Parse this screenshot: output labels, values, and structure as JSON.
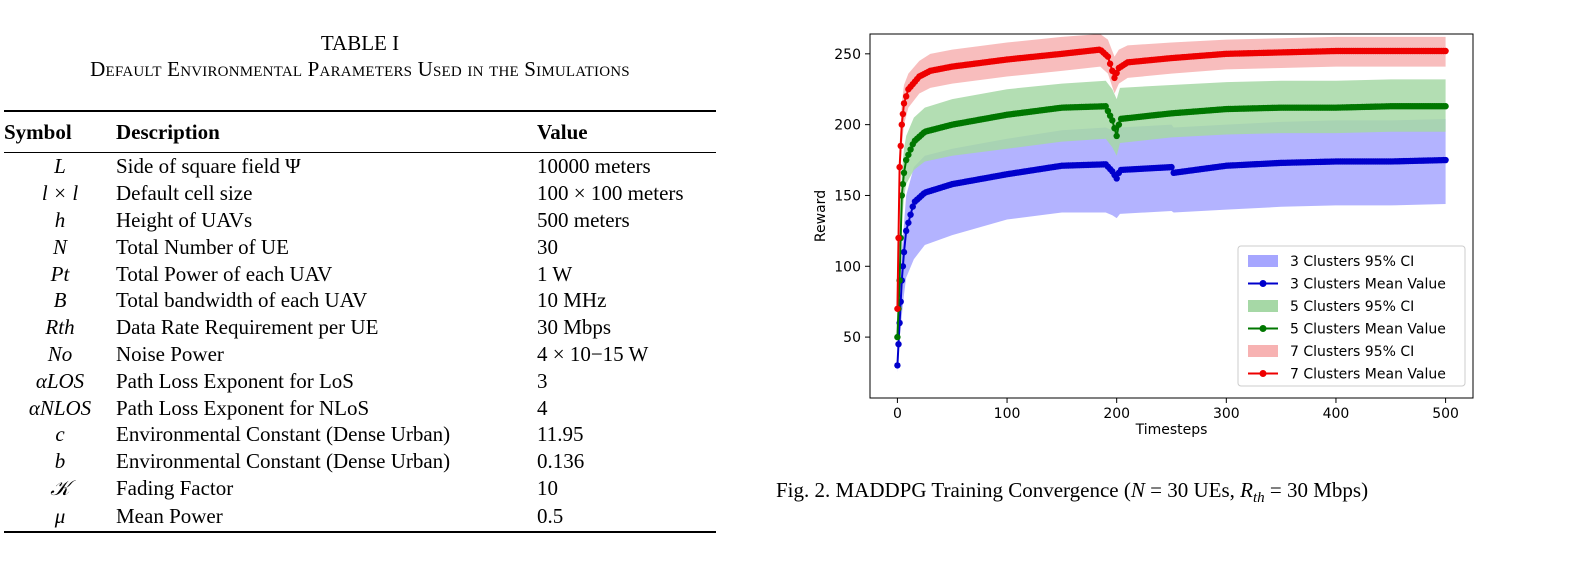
{
  "table": {
    "label": "TABLE I",
    "title": "Default Environmental Parameters Used in the Simulations",
    "headers": [
      "Symbol",
      "Description",
      "Value"
    ],
    "rows": [
      {
        "symbol": "L",
        "description": "Side of square field Ψ",
        "value": "10000 meters"
      },
      {
        "symbol": "l × l",
        "description": "Default cell size",
        "value": "100 × 100 meters"
      },
      {
        "symbol": "h",
        "description": "Height of UAVs",
        "value": "500 meters"
      },
      {
        "symbol": "N",
        "description": "Total Number of UE",
        "value": "30"
      },
      {
        "symbol": "Pt",
        "description": "Total Power of each UAV",
        "value": "1 W"
      },
      {
        "symbol": "B",
        "description": "Total bandwidth of each UAV",
        "value": "10 MHz"
      },
      {
        "symbol": "Rth",
        "description": "Data Rate Requirement per UE",
        "value": "30 Mbps"
      },
      {
        "symbol": "No",
        "description": "Noise Power",
        "value": "4 × 10−15 W"
      },
      {
        "symbol": "αLOS",
        "description": "Path Loss Exponent for LoS",
        "value": "3"
      },
      {
        "symbol": "αNLOS",
        "description": "Path Loss Exponent for NLoS",
        "value": "4"
      },
      {
        "symbol": "c",
        "description": "Environmental Constant (Dense Urban)",
        "value": "11.95"
      },
      {
        "symbol": "b",
        "description": "Environmental Constant (Dense Urban)",
        "value": "0.136"
      },
      {
        "symbol": "𝒦",
        "description": "Fading Factor",
        "value": "10"
      },
      {
        "symbol": "μ",
        "description": "Mean Power",
        "value": "0.5"
      }
    ]
  },
  "figure": {
    "caption_prefix": "Fig. 2.  MADDPG Training Convergence (",
    "caption_n": "N",
    "caption_eq1": " = 30 UEs, ",
    "caption_r": "R",
    "caption_r_sub": "th",
    "caption_eq2": " = 30 Mbps)"
  },
  "chart_data": {
    "type": "line",
    "xlabel": "Timesteps",
    "ylabel": "Reward",
    "xlim": [
      -25,
      525
    ],
    "ylim": [
      7,
      264
    ],
    "xticks": [
      0,
      100,
      200,
      300,
      400,
      500
    ],
    "yticks": [
      50,
      100,
      150,
      200,
      250
    ],
    "grid": false,
    "legend_position": "lower-right",
    "series": [
      {
        "name": "3 Clusters Mean Value",
        "ci_name": "3 Clusters 95% CI",
        "color": "#0000cc",
        "ci_color": "#a6a6ff",
        "x": [
          0,
          2,
          4,
          6,
          8,
          15,
          25,
          50,
          100,
          150,
          190,
          196,
          200,
          203,
          250,
          252,
          300,
          350,
          400,
          450,
          500
        ],
        "y": [
          30,
          60,
          90,
          110,
          125,
          145,
          152,
          158,
          165,
          171,
          172,
          167,
          162,
          168,
          170,
          166,
          171,
          173,
          174,
          174,
          175
        ],
        "ci_low": [
          25,
          50,
          65,
          80,
          92,
          105,
          115,
          122,
          133,
          138,
          138,
          136,
          134,
          137,
          139,
          138,
          140,
          142,
          143,
          143,
          144
        ],
        "ci_high": [
          35,
          70,
          110,
          130,
          150,
          170,
          178,
          183,
          190,
          196,
          198,
          196,
          192,
          198,
          200,
          198,
          200,
          202,
          203,
          203,
          204
        ]
      },
      {
        "name": "5 Clusters Mean Value",
        "ci_name": "5 Clusters 95% CI",
        "color": "#007700",
        "ci_color": "#a6d8a6",
        "x": [
          0,
          2,
          4,
          6,
          8,
          15,
          25,
          50,
          100,
          150,
          190,
          196,
          200,
          203,
          250,
          300,
          350,
          400,
          450,
          500
        ],
        "y": [
          50,
          90,
          150,
          166,
          175,
          188,
          195,
          200,
          207,
          212,
          213,
          203,
          192,
          204,
          208,
          211,
          212,
          212,
          213,
          213
        ],
        "ci_low": [
          45,
          80,
          130,
          148,
          158,
          168,
          174,
          178,
          183,
          188,
          190,
          184,
          178,
          187,
          191,
          193,
          194,
          194,
          195,
          195
        ],
        "ci_high": [
          55,
          100,
          165,
          183,
          192,
          205,
          212,
          218,
          225,
          229,
          231,
          225,
          218,
          226,
          228,
          230,
          231,
          231,
          232,
          232
        ]
      },
      {
        "name": "7 Clusters Mean Value",
        "ci_name": "7 Clusters 95% CI",
        "color": "#ee0000",
        "ci_color": "#f7b2b2",
        "x": [
          0,
          2,
          4,
          6,
          10,
          20,
          30,
          50,
          100,
          150,
          185,
          192,
          198,
          202,
          210,
          250,
          300,
          350,
          400,
          450,
          500
        ],
        "y": [
          70,
          170,
          200,
          215,
          225,
          234,
          238,
          241,
          246,
          250,
          253,
          248,
          233,
          240,
          244,
          247,
          250,
          251,
          252,
          252,
          252
        ],
        "ci_low": [
          60,
          150,
          185,
          200,
          212,
          222,
          226,
          229,
          234,
          238,
          241,
          236,
          222,
          229,
          233,
          236,
          239,
          240,
          241,
          241,
          241
        ],
        "ci_high": [
          80,
          185,
          215,
          228,
          236,
          245,
          250,
          253,
          258,
          262,
          264,
          260,
          248,
          253,
          256,
          258,
          260,
          261,
          262,
          262,
          262
        ]
      }
    ]
  }
}
